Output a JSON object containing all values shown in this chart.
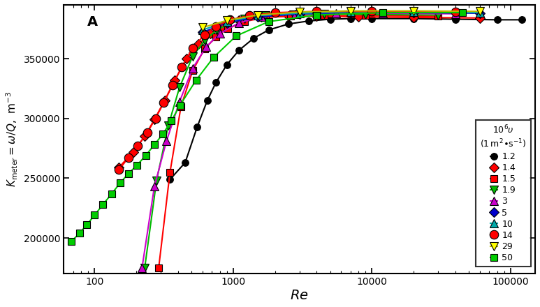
{
  "title": "A",
  "xlabel": "$Re$",
  "ylabel": "$K_{\\mathrm{meter}} = \\omega/Q$,  m$^{-3}$",
  "xlim": [
    60,
    150000
  ],
  "ylim": [
    170000,
    395000
  ],
  "yticks": [
    200000,
    250000,
    300000,
    350000
  ],
  "legend_title_line1": "$10^6\\upsilon$",
  "legend_title_line2": "$(1\\,\\mathrm{m}^2{\\bullet}\\mathrm{s}^{-1})$",
  "series": [
    {
      "label": "1.2",
      "line_color": "#000000",
      "marker": "o",
      "marker_facecolor": "#000000",
      "marker_edgecolor": "#000000",
      "markersize": 7,
      "re": [
        350,
        450,
        550,
        650,
        750,
        900,
        1100,
        1400,
        1800,
        2500,
        3500,
        5000,
        7000,
        10000,
        20000,
        40000,
        80000,
        120000
      ],
      "k": [
        249000,
        263000,
        293000,
        315000,
        330000,
        345000,
        357000,
        367000,
        374000,
        379000,
        381500,
        383000,
        383500,
        383500,
        383500,
        383000,
        382500,
        382500
      ]
    },
    {
      "label": "1.4",
      "line_color": "#ff0000",
      "marker": "D",
      "marker_facecolor": "#ff0000",
      "marker_edgecolor": "#000000",
      "markersize": 7,
      "re": [
        150,
        190,
        230,
        270,
        320,
        380,
        460,
        560,
        680,
        830,
        1100,
        1600,
        2500,
        4000,
        8000,
        20000,
        60000
      ],
      "k": [
        259000,
        272000,
        285000,
        299000,
        315000,
        332000,
        350000,
        362000,
        371000,
        377000,
        382000,
        385000,
        385500,
        385500,
        385000,
        384500,
        384000
      ]
    },
    {
      "label": "1.5",
      "line_color": "#ff0000",
      "marker": "s",
      "marker_facecolor": "#ff0000",
      "marker_edgecolor": "#000000",
      "markersize": 7,
      "re": [
        290,
        350,
        420,
        510,
        620,
        750,
        910,
        1200,
        1700,
        2600,
        4500,
        9000,
        30000
      ],
      "k": [
        175000,
        255000,
        310000,
        340000,
        358000,
        368000,
        375000,
        381000,
        384500,
        385500,
        386000,
        386000,
        385500
      ]
    },
    {
      "label": "1.9",
      "line_color": "#00bb00",
      "marker": "v",
      "marker_facecolor": "#00bb00",
      "marker_edgecolor": "#000000",
      "markersize": 8,
      "re": [
        230,
        280,
        340,
        410,
        510,
        620,
        760,
        930,
        1200,
        1700,
        2700,
        4500,
        9000,
        30000
      ],
      "k": [
        175000,
        248000,
        294000,
        326000,
        352000,
        365000,
        374000,
        379000,
        383500,
        386000,
        387000,
        387500,
        387000,
        386500
      ]
    },
    {
      "label": "3",
      "line_color": "#cc00cc",
      "marker": "^",
      "marker_facecolor": "#cc00cc",
      "marker_edgecolor": "#000000",
      "markersize": 8,
      "re": [
        220,
        270,
        330,
        410,
        510,
        640,
        800,
        1100,
        1600,
        2800,
        5500,
        12000,
        40000
      ],
      "k": [
        175000,
        243000,
        281000,
        314000,
        342000,
        360000,
        371000,
        380000,
        385000,
        387500,
        388000,
        388000,
        387500
      ]
    },
    {
      "label": "5",
      "line_color": "#0000cc",
      "marker": "D",
      "marker_facecolor": "#0000cc",
      "marker_edgecolor": "#000000",
      "markersize": 7,
      "re": [
        600,
        900,
        1500,
        3000,
        7000,
        20000,
        60000
      ],
      "k": [
        372000,
        380000,
        385000,
        387500,
        388500,
        388500,
        388000
      ]
    },
    {
      "label": "10",
      "line_color": "#00aaaa",
      "marker": "^",
      "marker_facecolor": "#00aaaa",
      "marker_edgecolor": "#000000",
      "markersize": 8,
      "re": [
        600,
        900,
        1500,
        3000,
        7000,
        20000,
        60000
      ],
      "k": [
        374000,
        381000,
        386000,
        388000,
        389000,
        389000,
        388500
      ]
    },
    {
      "label": "14",
      "line_color": "#ff0000",
      "marker": "o",
      "marker_facecolor": "#ff0000",
      "marker_edgecolor": "#000000",
      "markersize": 9,
      "re": [
        150,
        175,
        205,
        240,
        275,
        315,
        365,
        425,
        510,
        620,
        750,
        950,
        1300,
        2000,
        4000,
        10000,
        40000
      ],
      "k": [
        257000,
        267000,
        277000,
        288000,
        300000,
        313000,
        328000,
        343000,
        359000,
        370000,
        377000,
        382500,
        386000,
        388500,
        389500,
        389500,
        389000
      ]
    },
    {
      "label": "29",
      "line_color": "#bbbb00",
      "marker": "v",
      "marker_facecolor": "#ffff00",
      "marker_edgecolor": "#000000",
      "markersize": 8,
      "re": [
        600,
        900,
        1500,
        3000,
        7000,
        20000,
        60000
      ],
      "k": [
        376000,
        382000,
        386500,
        389000,
        390000,
        390000,
        389500
      ]
    },
    {
      "label": "50",
      "line_color": "#00cc00",
      "marker": "s",
      "marker_facecolor": "#00cc00",
      "marker_edgecolor": "#000000",
      "markersize": 7,
      "re": [
        68,
        78,
        88,
        100,
        115,
        133,
        153,
        176,
        203,
        234,
        270,
        311,
        358,
        413,
        540,
        720,
        1050,
        1800,
        4000,
        12000,
        45000
      ],
      "k": [
        197000,
        204000,
        211000,
        219000,
        228000,
        237000,
        246000,
        254000,
        261000,
        269000,
        278000,
        287000,
        298000,
        311000,
        332000,
        351000,
        369000,
        381000,
        386500,
        388500,
        388500
      ]
    }
  ]
}
